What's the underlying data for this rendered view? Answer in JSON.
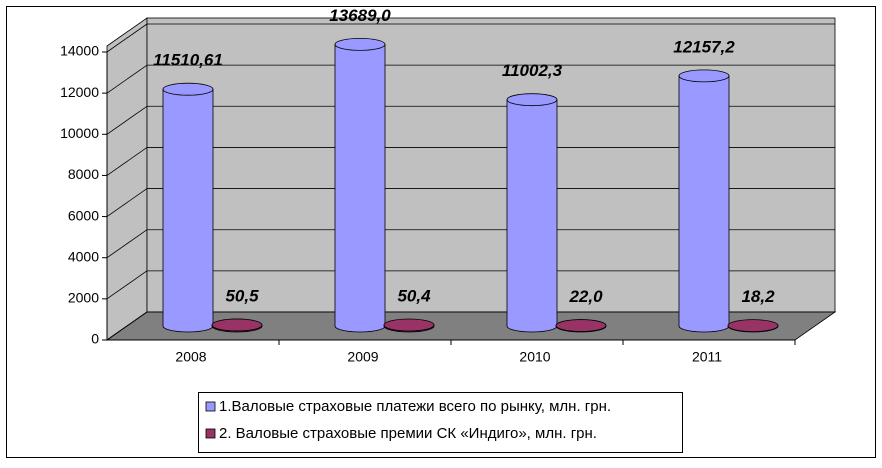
{
  "chart_data": {
    "type": "bar3d",
    "categories": [
      "2008",
      "2009",
      "2010",
      "2011"
    ],
    "series": [
      {
        "name": "1.Валовые страховые платежи всего по рынку, млн. грн.",
        "color": "#9999ff",
        "values": [
          11510.61,
          13689.0,
          11002.3,
          12157.2
        ],
        "value_labels": [
          "11510,61",
          "13689,0",
          "11002,3",
          "12157,2"
        ]
      },
      {
        "name": "2. Валовые страховые премии СК «Индиго», млн. грн.",
        "color": "#993366",
        "values": [
          50.5,
          50.4,
          22.0,
          18.2
        ],
        "value_labels": [
          "50,5",
          "50,4",
          "22,0",
          "18,2"
        ]
      }
    ],
    "ylim": [
      0,
      14000
    ],
    "yticks": [
      0,
      2000,
      4000,
      6000,
      8000,
      10000,
      12000,
      14000
    ],
    "grid": true
  }
}
